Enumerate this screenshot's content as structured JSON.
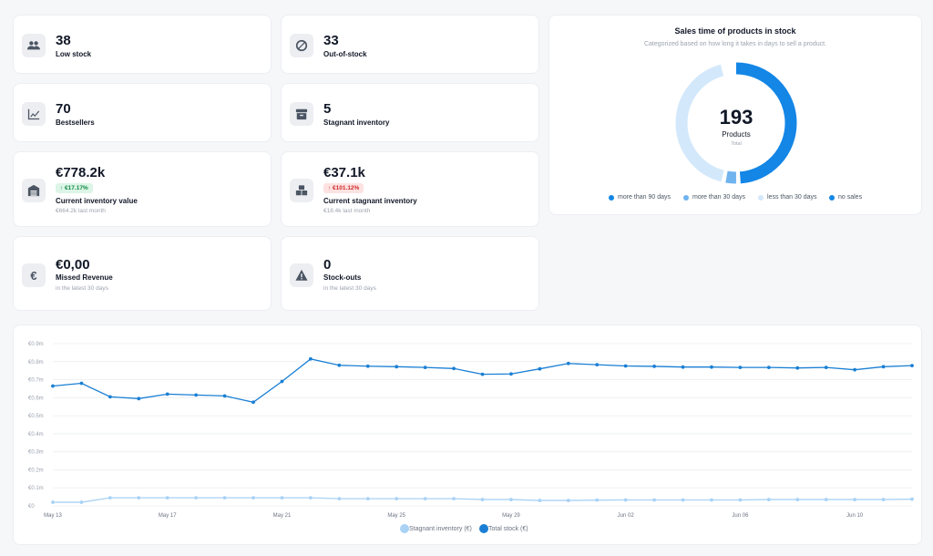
{
  "stats": [
    {
      "value": "38",
      "label": "Low stock",
      "icon": "users-icon"
    },
    {
      "value": "33",
      "label": "Out-of-stock",
      "icon": "ban-icon"
    },
    {
      "value": "70",
      "label": "Bestsellers",
      "icon": "chart-up-icon"
    },
    {
      "value": "5",
      "label": "Stagnant inventory",
      "icon": "archive-icon"
    },
    {
      "value": "€778.2k",
      "label": "Current inventory value",
      "badge": "↑ €17.17%",
      "sub": "€664.2k last month",
      "icon": "warehouse-icon"
    },
    {
      "value": "€37.1k",
      "label": "Current stagnant inventory",
      "badge": "↑ €101.12%",
      "sub": "€18.4k last month",
      "icon": "boxes-icon"
    },
    {
      "value": "€0,00",
      "label": "Missed Revenue",
      "sub": "in the latest 30 days",
      "icon": "euro-icon"
    },
    {
      "value": "0",
      "label": "Stock-outs",
      "sub": "in the latest 30 days",
      "icon": "warning-icon"
    }
  ],
  "donut": {
    "title": "Sales time of products in stock",
    "subtitle": "Categorized based on how long it takes in days to sell a product.",
    "total": "193",
    "total_label": "Products",
    "total_sub": "Total",
    "segments": [
      {
        "name": "more than 90 days",
        "fraction": 0.5,
        "color": "#1386e6"
      },
      {
        "name": "more than 30 days",
        "fraction": 0.04,
        "color": "#6fb3ef"
      },
      {
        "name": "less than 30 days",
        "fraction": 0.43,
        "color": "#d3e8fb"
      },
      {
        "name": "no sales",
        "fraction": 0.0,
        "color": "#1386e6"
      }
    ]
  },
  "chart_data": {
    "type": "line",
    "x": [
      "May 13",
      "May 14",
      "May 15",
      "May 16",
      "May 17",
      "May 18",
      "May 19",
      "May 20",
      "May 21",
      "May 22",
      "May 23",
      "May 24",
      "May 25",
      "May 26",
      "May 27",
      "May 28",
      "May 29",
      "May 30",
      "May 31",
      "Jun 01",
      "Jun 02",
      "Jun 03",
      "Jun 04",
      "Jun 05",
      "Jun 06",
      "Jun 07",
      "Jun 08",
      "Jun 09",
      "Jun 10",
      "Jun 11",
      "Jun 12"
    ],
    "tick_labels": [
      "May 13",
      "May 17",
      "May 21",
      "May 25",
      "May 29",
      "Jun 02",
      "Jun 06",
      "Jun 10"
    ],
    "y_ticks": [
      "€0",
      "€0.1m",
      "€0.2m",
      "€0.3m",
      "€0.4m",
      "€0.5m",
      "€0.6m",
      "€0.7m",
      "€0.8m",
      "€0.9m"
    ],
    "ylim": [
      0,
      0.9
    ],
    "series": [
      {
        "name": "Stagnant inventory (€)",
        "color": "#a9d2f5",
        "values": [
          0.02,
          0.02,
          0.045,
          0.045,
          0.045,
          0.045,
          0.045,
          0.045,
          0.045,
          0.045,
          0.04,
          0.04,
          0.04,
          0.04,
          0.04,
          0.035,
          0.035,
          0.03,
          0.03,
          0.032,
          0.033,
          0.033,
          0.033,
          0.033,
          0.033,
          0.035,
          0.035,
          0.035,
          0.035,
          0.035,
          0.037
        ]
      },
      {
        "name": "Total stock (€)",
        "color": "#1a7fd4",
        "values": [
          0.665,
          0.68,
          0.605,
          0.595,
          0.62,
          0.615,
          0.61,
          0.575,
          0.69,
          0.815,
          0.78,
          0.775,
          0.772,
          0.768,
          0.762,
          0.73,
          0.732,
          0.76,
          0.79,
          0.783,
          0.776,
          0.774,
          0.77,
          0.77,
          0.768,
          0.768,
          0.765,
          0.768,
          0.755,
          0.772,
          0.778
        ]
      }
    ]
  }
}
